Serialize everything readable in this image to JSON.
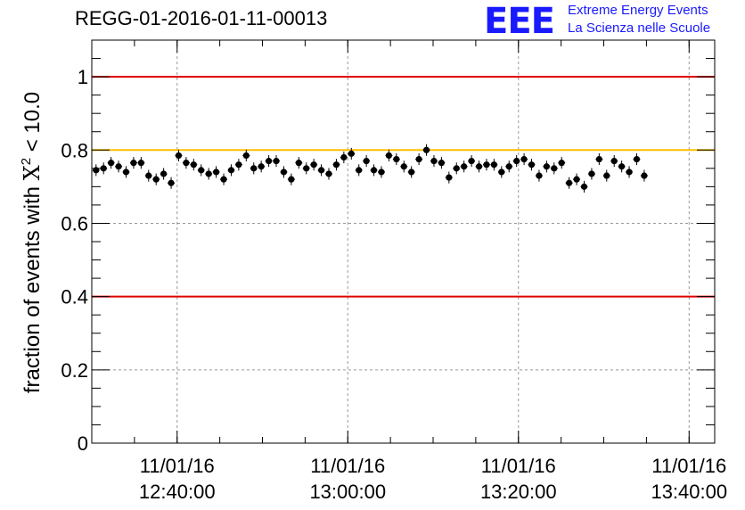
{
  "title": "REGG-01-2016-01-11-00013",
  "logo": {
    "mark": "EEE",
    "line1": "Extreme Energy Events",
    "line2": "La Scienza nelle Scuole"
  },
  "colors": {
    "reference_red": "#e00000",
    "reference_yellow": "#ffbf00",
    "marker": "#000000"
  },
  "chart_data": {
    "type": "scatter",
    "ylabel_prefix": "fraction of events with ",
    "ylabel_symbol": "X",
    "ylabel_superscript": "2",
    "ylabel_suffix": " < 10.0",
    "xlabel": "",
    "ylim": [
      0,
      1.1
    ],
    "yticks": [
      "0",
      "0.2",
      "0.4",
      "0.6",
      "0.8",
      "1"
    ],
    "ytick_values": [
      0,
      0.2,
      0.4,
      0.6,
      0.8,
      1.0
    ],
    "xlim_minutes": [
      28,
      101
    ],
    "xtick_minutes": [
      38,
      58,
      78,
      98
    ],
    "xtick_labels": [
      [
        "11/01/16",
        "12:40:00"
      ],
      [
        "11/01/16",
        "13:00:00"
      ],
      [
        "11/01/16",
        "13:20:00"
      ],
      [
        "11/01/16",
        "13:40:00"
      ]
    ],
    "reference_lines": [
      {
        "y": 1.0,
        "color": "red"
      },
      {
        "y": 0.8,
        "color": "yellow"
      },
      {
        "y": 0.4,
        "color": "red"
      }
    ],
    "grid": true,
    "x_start_minutes": 28.5,
    "x_step_minutes": 0.88,
    "values": [
      0.745,
      0.75,
      0.765,
      0.755,
      0.74,
      0.765,
      0.765,
      0.73,
      0.72,
      0.735,
      0.71,
      0.785,
      0.765,
      0.76,
      0.745,
      0.735,
      0.74,
      0.72,
      0.745,
      0.76,
      0.785,
      0.75,
      0.755,
      0.77,
      0.77,
      0.74,
      0.72,
      0.765,
      0.75,
      0.76,
      0.745,
      0.735,
      0.76,
      0.78,
      0.79,
      0.745,
      0.77,
      0.745,
      0.74,
      0.785,
      0.775,
      0.755,
      0.74,
      0.775,
      0.8,
      0.77,
      0.765,
      0.725,
      0.75,
      0.755,
      0.77,
      0.755,
      0.76,
      0.76,
      0.74,
      0.755,
      0.77,
      0.775,
      0.76,
      0.73,
      0.755,
      0.75,
      0.765,
      0.71,
      0.72,
      0.7,
      0.735,
      0.775,
      0.73,
      0.77,
      0.755,
      0.74,
      0.775,
      0.73
    ],
    "error": 0.016
  }
}
